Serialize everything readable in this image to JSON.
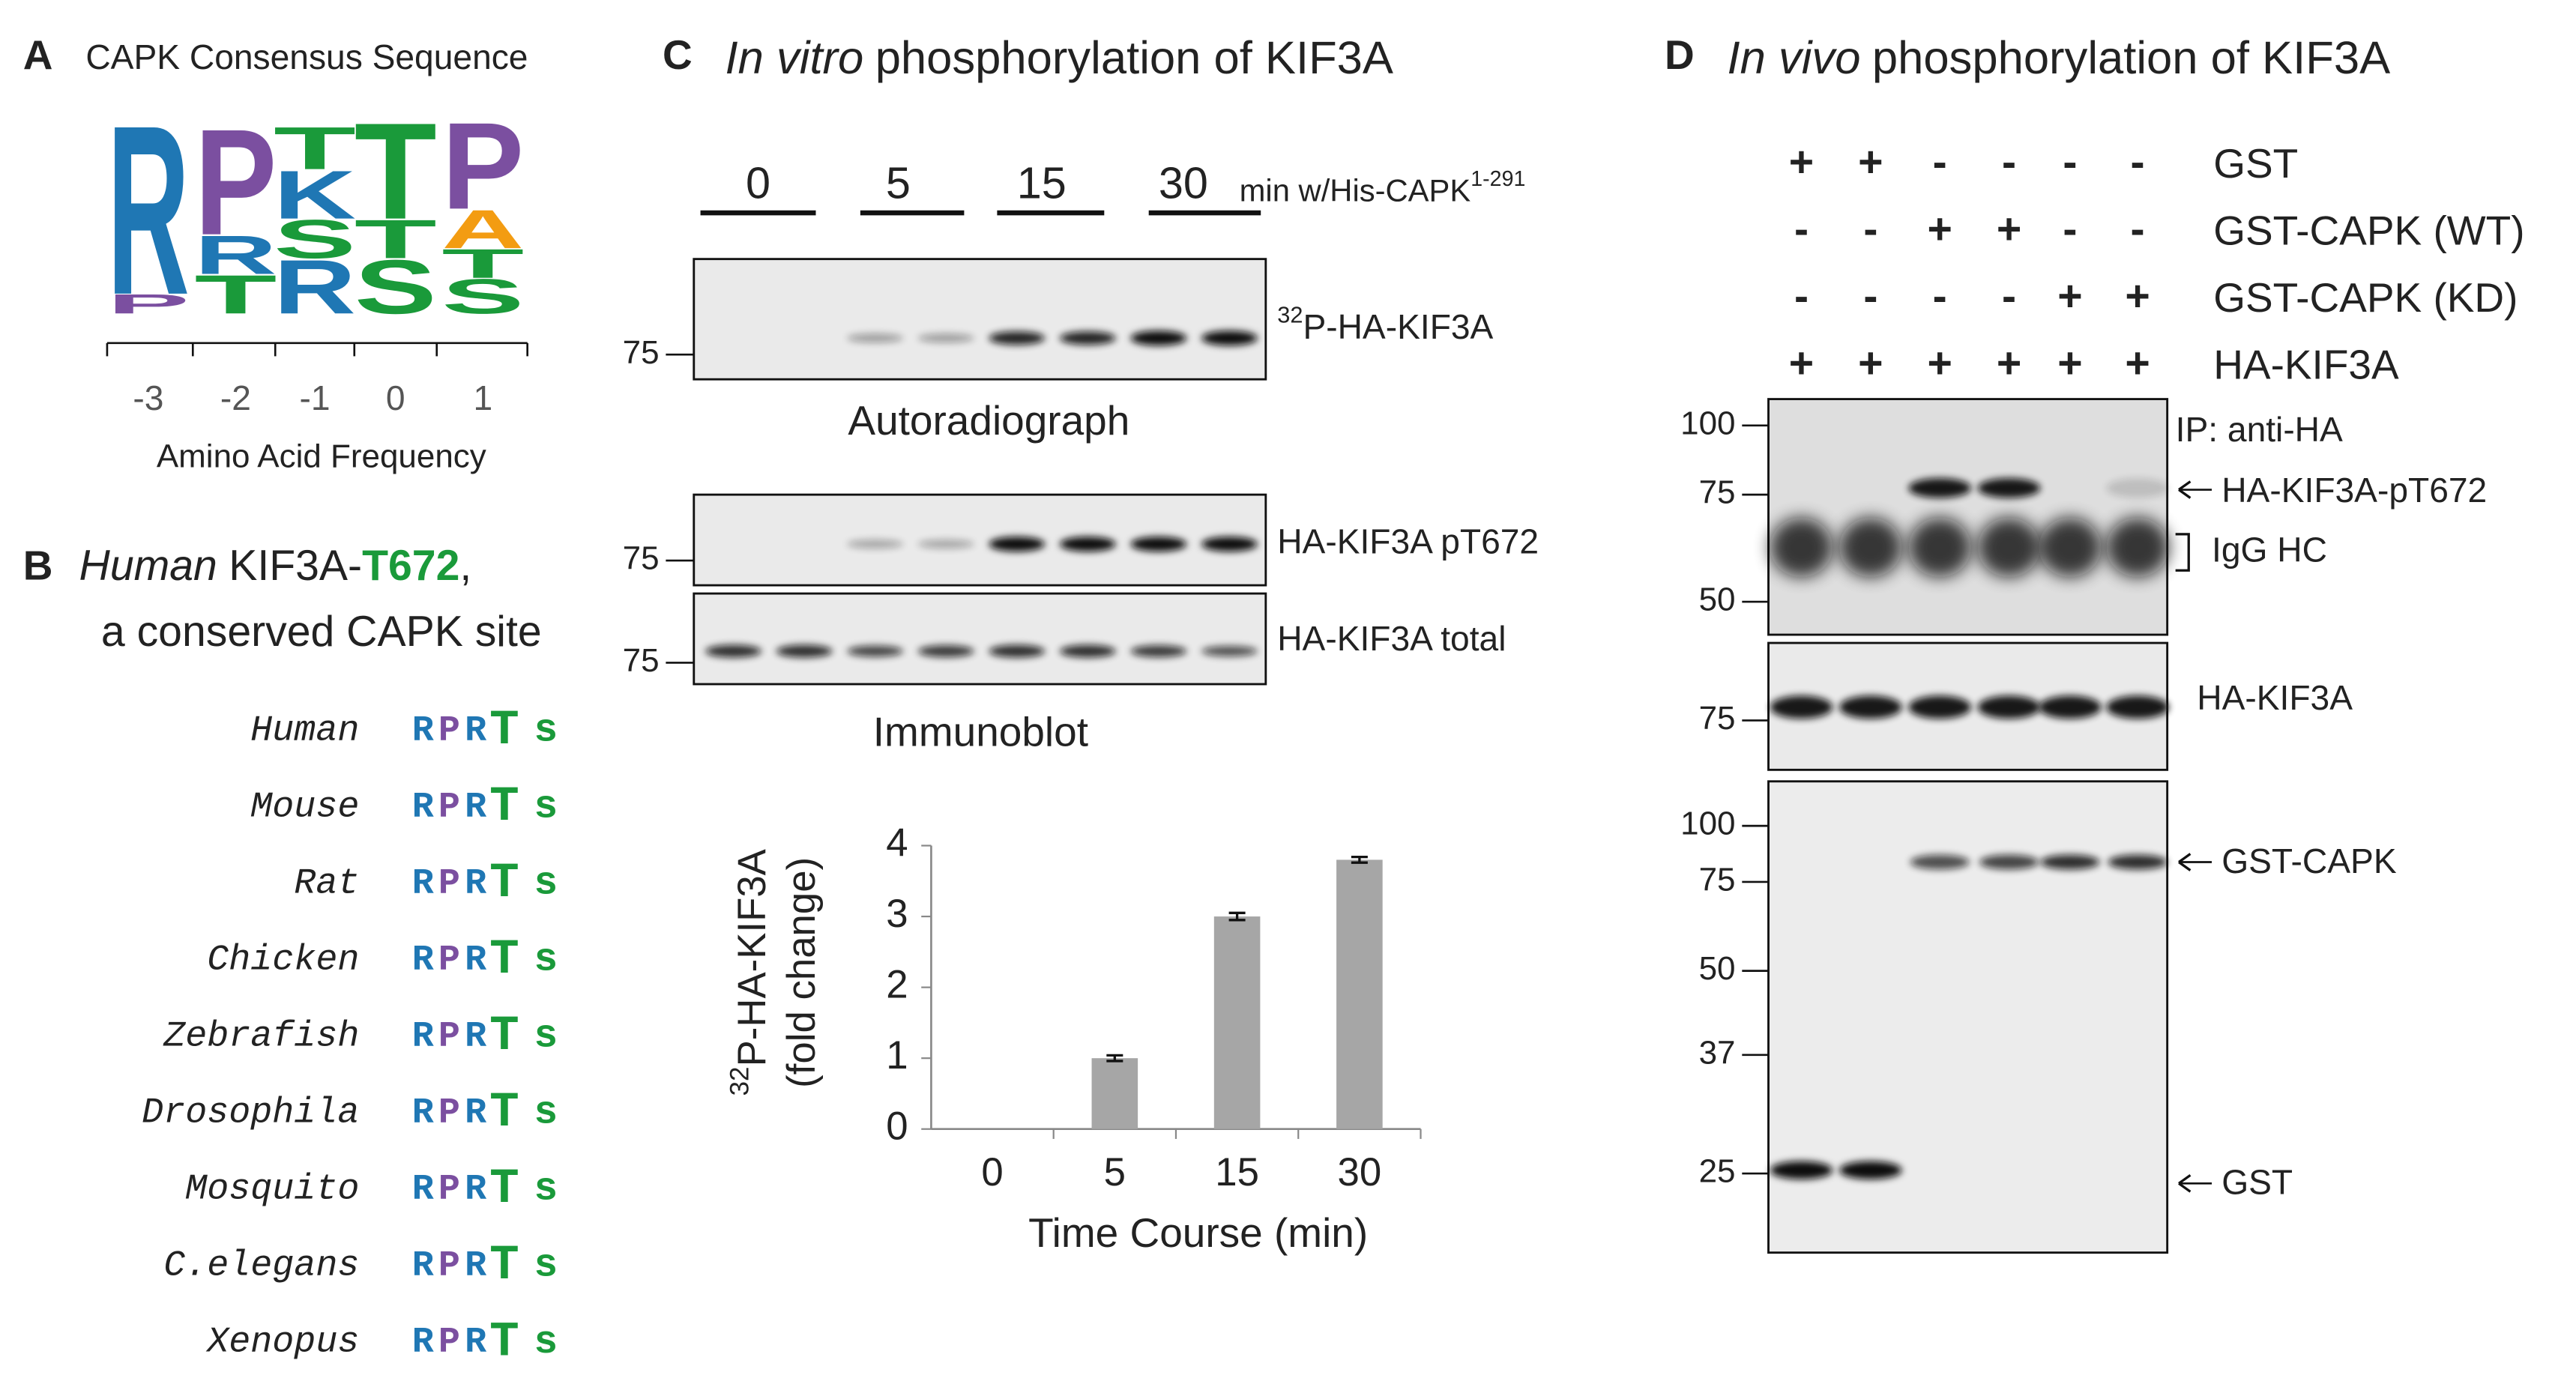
{
  "panel_a": {
    "letter": "A",
    "title": "CAPK Consensus Sequence",
    "logo": [
      [
        {
          "letter": "R",
          "freq": 0.88,
          "color": "#1f77b4"
        },
        {
          "letter": "P",
          "freq": 0.1,
          "color": "#7b4fa0"
        }
      ],
      [
        {
          "letter": "P",
          "freq": 0.55,
          "color": "#7b4fa0"
        },
        {
          "letter": "R",
          "freq": 0.2,
          "color": "#1f77b4"
        },
        {
          "letter": "T",
          "freq": 0.2,
          "color": "#1a9a3a"
        }
      ],
      [
        {
          "letter": "T",
          "freq": 0.22,
          "color": "#1a9a3a"
        },
        {
          "letter": "K",
          "freq": 0.25,
          "color": "#1f77b4"
        },
        {
          "letter": "S",
          "freq": 0.2,
          "color": "#1a9a3a"
        },
        {
          "letter": "R",
          "freq": 0.28,
          "color": "#1f77b4"
        }
      ],
      [
        {
          "letter": "T",
          "freq": 0.5,
          "color": "#1a9a3a"
        },
        {
          "letter": "T",
          "freq": 0.2,
          "color": "#1a9a3a"
        },
        {
          "letter": "S",
          "freq": 0.28,
          "color": "#1a9a3a"
        }
      ],
      [
        {
          "letter": "P",
          "freq": 0.45,
          "color": "#7b4fa0"
        },
        {
          "letter": "A",
          "freq": 0.2,
          "color": "#f39c12"
        },
        {
          "letter": "T",
          "freq": 0.15,
          "color": "#1a9a3a"
        },
        {
          "letter": "S",
          "freq": 0.18,
          "color": "#1a9a3a"
        }
      ]
    ],
    "positions": [
      "-3",
      "-2",
      "-1",
      "0",
      "1"
    ],
    "axis_label": "Amino Acid Frequency"
  },
  "panel_b": {
    "letter": "B",
    "title_italic": "Human",
    "title_mid": "KIF3A-",
    "title_site": "T672",
    "title_end": ",",
    "subtitle": "a conserved CAPK site",
    "motif_colors": [
      "#1f77b4",
      "#7b4fa0",
      "#1f77b4",
      "#1a9a3a",
      "#1a9a3a"
    ],
    "species": [
      {
        "name": "Human",
        "motif": [
          "R",
          "P",
          "R",
          "T",
          "s"
        ]
      },
      {
        "name": "Mouse",
        "motif": [
          "R",
          "P",
          "R",
          "T",
          "s"
        ]
      },
      {
        "name": "Rat",
        "motif": [
          "R",
          "P",
          "R",
          "T",
          "s"
        ]
      },
      {
        "name": "Chicken",
        "motif": [
          "R",
          "P",
          "R",
          "T",
          "s"
        ]
      },
      {
        "name": "Zebrafish",
        "motif": [
          "R",
          "P",
          "R",
          "T",
          "s"
        ]
      },
      {
        "name": "Drosophila",
        "motif": [
          "R",
          "P",
          "R",
          "T",
          "s"
        ]
      },
      {
        "name": "Mosquito",
        "motif": [
          "R",
          "P",
          "R",
          "T",
          "s"
        ]
      },
      {
        "name": "C.elegans",
        "motif": [
          "R",
          "P",
          "R",
          "T",
          "s"
        ]
      },
      {
        "name": "Xenopus",
        "motif": [
          "R",
          "P",
          "R",
          "T",
          "s"
        ]
      }
    ]
  },
  "panel_c": {
    "letter": "C",
    "title_italic": "In vitro",
    "title_rest": "phosphorylation of KIF3A",
    "timepoints": [
      "0",
      "5",
      "15",
      "30"
    ],
    "treatment": "min w/His-CAPK",
    "treatment_sup": "1-291",
    "markers": [
      "75",
      "75",
      "75"
    ],
    "blot1_sup": "32",
    "blot1_label": "P-HA-KIF3A",
    "autoradiograph": "Autoradiograph",
    "blot2_label": "HA-KIF3A pT672",
    "blot3_label": "HA-KIF3A total",
    "immunoblot": "Immunoblot"
  },
  "chart_data": {
    "type": "bar",
    "categories": [
      "0",
      "5",
      "15",
      "30"
    ],
    "values": [
      0,
      1.0,
      3.0,
      3.8
    ],
    "errors": [
      0,
      0.04,
      0.05,
      0.04
    ],
    "color": "#a6a6a6",
    "ylim": [
      0,
      4
    ],
    "yticks": [
      0,
      1,
      2,
      3,
      4
    ],
    "x_label": "Time Course (min)",
    "y_label_sup": "32",
    "y_label": "P-HA-KIF3A",
    "y_label_2": "(fold change)"
  },
  "panel_d": {
    "letter": "D",
    "title_italic": "In vivo",
    "title_rest": "phosphorylation of KIF3A",
    "conditions": [
      {
        "label": "GST",
        "signs": [
          "+",
          "+",
          "-",
          "-",
          "-",
          "-"
        ]
      },
      {
        "label": "GST-CAPK (WT)",
        "signs": [
          "-",
          "-",
          "+",
          "+",
          "-",
          "-"
        ]
      },
      {
        "label": "GST-CAPK (KD)",
        "signs": [
          "-",
          "-",
          "-",
          "-",
          "+",
          "+"
        ]
      },
      {
        "label": "HA-KIF3A",
        "signs": [
          "+",
          "+",
          "+",
          "+",
          "+",
          "+"
        ]
      }
    ],
    "blot1_markers": [
      "100",
      "75",
      "50"
    ],
    "blot1_ip": "IP: anti-HA",
    "blot1_band": "HA-KIF3A-pT672",
    "blot1_igg": "IgG HC",
    "blot2_markers": [
      "75"
    ],
    "blot2_label": "HA-KIF3A",
    "blot3_markers": [
      "100",
      "75",
      "50",
      "37",
      "25"
    ],
    "blot3_band1": "GST-CAPK",
    "blot3_band2": "GST"
  }
}
